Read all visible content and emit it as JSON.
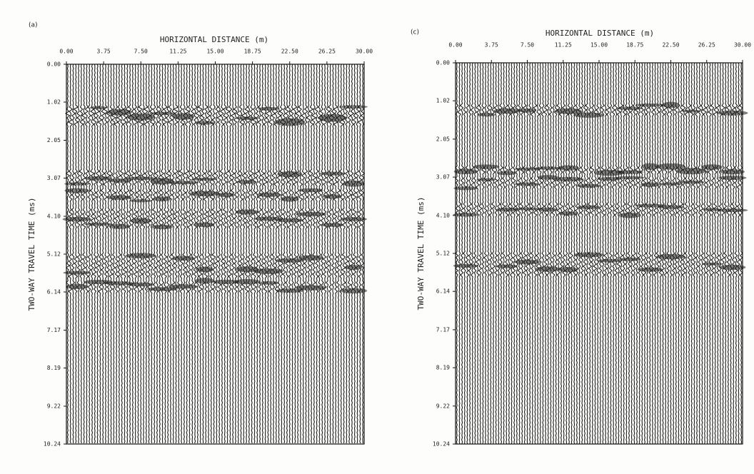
{
  "chart_data": [
    {
      "type": "seismic",
      "panel_label": "(a)",
      "title": "HORIZONTAL DISTANCE (m)",
      "ylabel": "TWO-WAY TRAVEL TIME (ms)",
      "xlim": [
        0,
        30
      ],
      "ylim": [
        0,
        10.24
      ],
      "xticks": [
        {
          "value": 0,
          "label": "0.00"
        },
        3.75,
        {
          "value": 7.5,
          "label": "7.50"
        },
        11.25,
        {
          "value": 15,
          "label": "15.00"
        },
        18.75,
        {
          "value": 22.5,
          "label": "22.50"
        },
        26.25,
        {
          "value": 30,
          "label": "30.00"
        }
      ],
      "yticks": [
        {
          "value": 0,
          "label": "0.00"
        },
        1.02,
        2.05,
        3.07,
        {
          "value": 4.1,
          "label": "4.10"
        },
        5.12,
        6.14,
        7.17,
        8.19,
        9.22,
        10.24
      ],
      "color": "#1a1a1a"
    },
    {
      "type": "seismic",
      "panel_label": "(c)",
      "title": "HORIZONTAL DISTANCE (m)",
      "ylabel": "TWO-WAY TRAVEL TIME (ms)",
      "xlim": [
        0,
        30
      ],
      "ylim": [
        0,
        10.24
      ],
      "xticks": [
        {
          "value": 0,
          "label": "0.00"
        },
        3.75,
        {
          "value": 7.5,
          "label": "7.50"
        },
        11.25,
        {
          "value": 15,
          "label": "15.00"
        },
        18.75,
        {
          "value": 22.5,
          "label": "22.50"
        },
        26.25,
        {
          "value": 30,
          "label": "30.00"
        }
      ],
      "yticks": [
        {
          "value": 0,
          "label": "0.00"
        },
        1.02,
        2.05,
        3.07,
        {
          "value": 4.1,
          "label": "4.10"
        },
        5.12,
        6.14,
        7.17,
        8.19,
        9.22,
        10.24
      ],
      "color": "#1a1a1a"
    }
  ]
}
